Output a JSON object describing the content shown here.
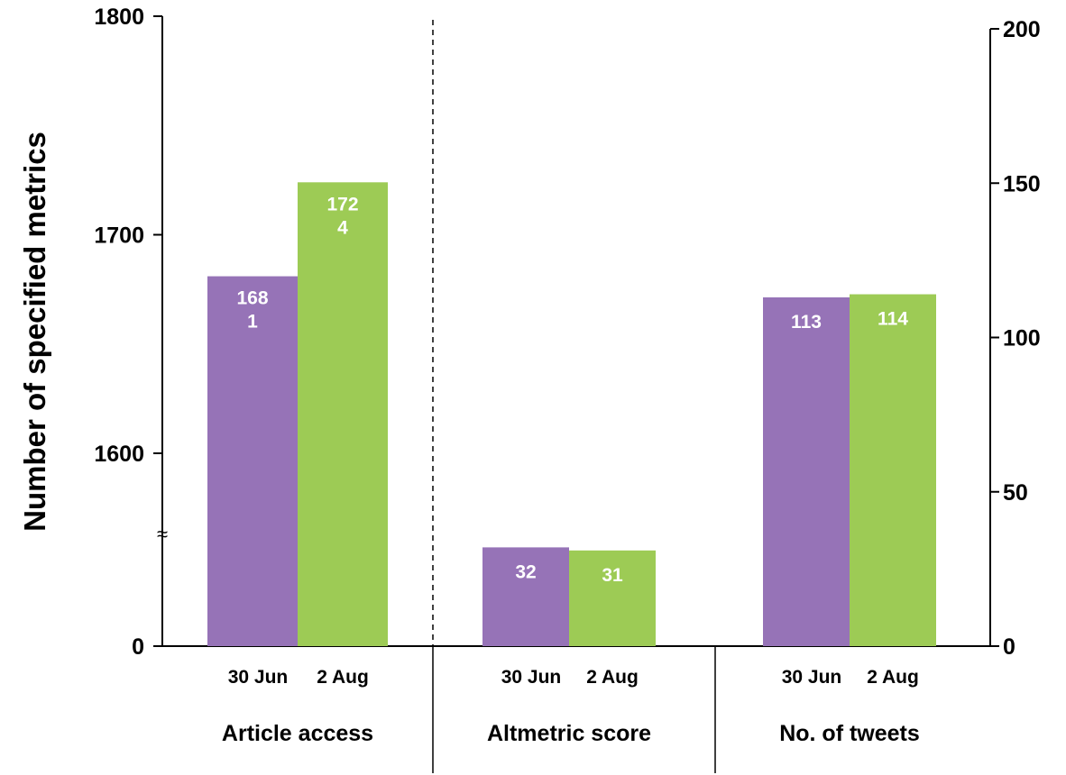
{
  "chart_data": {
    "type": "bar",
    "ylabel": "Number of specified metrics",
    "left_axis": {
      "ticks": [
        "1800",
        "1700",
        "1600",
        "0"
      ],
      "break_symbol": "≈",
      "range_upper": [
        1560,
        1800
      ],
      "range_lower": [
        0,
        1560
      ]
    },
    "right_axis": {
      "ticks": [
        "200",
        "150",
        "100",
        "50",
        "0"
      ],
      "range": [
        0,
        200
      ]
    },
    "colors": {
      "series_1": "#9673b7",
      "series_2": "#9dcb55"
    },
    "groups": [
      {
        "label": "Article access",
        "axis": "left",
        "bars": [
          {
            "category": "30 Jun",
            "value": 1681,
            "label_lines": [
              "168",
              "1"
            ]
          },
          {
            "category": "2 Aug",
            "value": 1724,
            "label_lines": [
              "172",
              "4"
            ]
          }
        ]
      },
      {
        "label": "Altmetric score",
        "axis": "right",
        "bars": [
          {
            "category": "30 Jun",
            "value": 32,
            "label_lines": [
              "32"
            ]
          },
          {
            "category": "2 Aug",
            "value": 31,
            "label_lines": [
              "31"
            ]
          }
        ]
      },
      {
        "label": "No. of tweets",
        "axis": "right",
        "bars": [
          {
            "category": "30 Jun",
            "value": 113,
            "label_lines": [
              "113"
            ]
          },
          {
            "category": "2 Aug",
            "value": 114,
            "label_lines": [
              "114"
            ]
          }
        ]
      }
    ]
  }
}
